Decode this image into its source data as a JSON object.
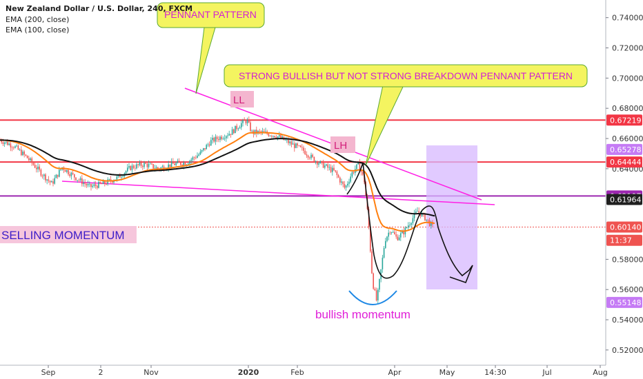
{
  "header": {
    "symbol_line": "New Zealand Dollar / U.S. Dollar, 240, FXCM",
    "ema1": "EMA (200, close)",
    "ema2": "EMA (100, close)"
  },
  "chart_data": {
    "type": "line",
    "price_axis": {
      "range": [
        0.5099,
        0.7517
      ],
      "ticks": [
        "0.74000",
        "0.72000",
        "0.70000",
        "0.68000",
        "0.66000",
        "0.64000",
        "0.58000",
        "0.56000",
        "0.54000",
        "0.52000"
      ]
    },
    "time_axis": {
      "labels": [
        "Sep",
        "2",
        "Nov",
        "2020",
        "Feb",
        "Apr",
        "May",
        "14:30",
        "Jul",
        "Aug"
      ]
    },
    "price_labels": [
      {
        "text": "0.67219",
        "value": 0.67219,
        "color": "#f23645"
      },
      {
        "text": "0.65278",
        "value": 0.65278,
        "color": "#c57bf5"
      },
      {
        "text": "0.64444",
        "value": 0.64444,
        "color": "#f23645"
      },
      {
        "text": "0.62197",
        "value": 0.62197,
        "color": "#9c27b0"
      },
      {
        "text": "0.61964",
        "value": 0.61964,
        "color": "#1f1f1f"
      },
      {
        "text": "0.60140",
        "value": 0.6014,
        "color": "#ef5350"
      },
      {
        "text": "11:37",
        "value": 0.5926,
        "color": "#ef5350"
      },
      {
        "text": "0.55148",
        "value": 0.55148,
        "color": "#c57bf5"
      }
    ],
    "horizontal_levels": [
      {
        "value": 0.67219,
        "color": "#f23645"
      },
      {
        "value": 0.64444,
        "color": "#f23645"
      },
      {
        "value": 0.62197,
        "color": "#9c27b0"
      }
    ],
    "series": [
      {
        "name": "EMA (200, close)",
        "color": "#111111"
      },
      {
        "name": "EMA (100, close)",
        "color": "#ff7f0e"
      }
    ],
    "annotations": {
      "callout_pennant": "PENNANT PATTERN",
      "callout_strong": "STRONG BULLISH BUT NOT STRONG BREAKDOWN PENNANT PATTERN",
      "ll": "LL",
      "lh": "LH",
      "selling": "SELLING MOMENTUM",
      "bullish": "bullish momentum"
    },
    "colors": {
      "bull": "#26a69a",
      "bear": "#ef5350",
      "pennant": "#ff1fe5",
      "forecast_box": "#d7b8ff",
      "callout_fill": "#f4f460",
      "callout_border": "#5aa832"
    }
  }
}
